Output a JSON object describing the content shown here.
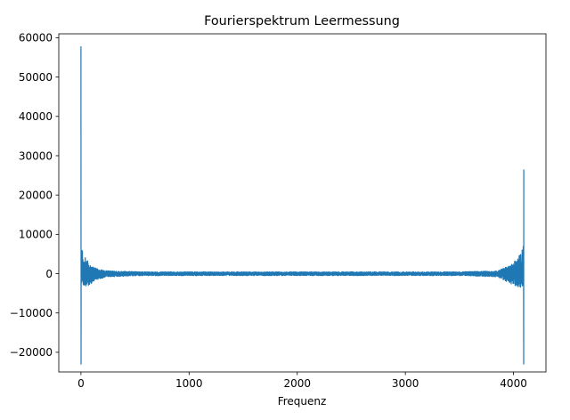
{
  "chart_data": {
    "type": "line",
    "title": "Fourierspektrum Leermessung",
    "xlabel": "Frequenz",
    "ylabel": "",
    "xlim": [
      -205,
      4300
    ],
    "ylim": [
      -25000,
      61000
    ],
    "x_ticks": [
      0,
      1000,
      2000,
      3000,
      4000
    ],
    "x_tick_labels": [
      "0",
      "1000",
      "2000",
      "3000",
      "4000"
    ],
    "y_ticks": [
      -20000,
      -10000,
      0,
      10000,
      20000,
      30000,
      40000,
      50000,
      60000
    ],
    "y_tick_labels": [
      "−20000",
      "−10000",
      "0",
      "10000",
      "20000",
      "30000",
      "40000",
      "50000",
      "60000"
    ],
    "grid": false,
    "legend": "none",
    "series": [
      {
        "color": "#1f77b4",
        "x_start": 0,
        "x_end": 4095,
        "n_points": 4096,
        "spikes": [
          {
            "x": 0,
            "y": 57800
          },
          {
            "x": 1,
            "y": -23000
          },
          {
            "x": 4094,
            "y": -23000
          },
          {
            "x": 4095,
            "y": 26500
          }
        ],
        "envelope": [
          {
            "x": 2,
            "max": 7500,
            "min": -2500
          },
          {
            "x": 20,
            "max": 5200,
            "min": -3000
          },
          {
            "x": 60,
            "max": 3500,
            "min": -3200
          },
          {
            "x": 100,
            "max": 2000,
            "min": -2500
          },
          {
            "x": 150,
            "max": 1200,
            "min": -1500
          },
          {
            "x": 250,
            "max": 700,
            "min": -800
          },
          {
            "x": 600,
            "max": 450,
            "min": -500
          },
          {
            "x": 3500,
            "max": 450,
            "min": -500
          },
          {
            "x": 3850,
            "max": 700,
            "min": -800
          },
          {
            "x": 3950,
            "max": 2000,
            "min": -2200
          },
          {
            "x": 4040,
            "max": 3800,
            "min": -3500
          },
          {
            "x": 4080,
            "max": 6500,
            "min": -3500
          },
          {
            "x": 4093,
            "max": 7600,
            "min": -2500
          }
        ]
      }
    ]
  }
}
